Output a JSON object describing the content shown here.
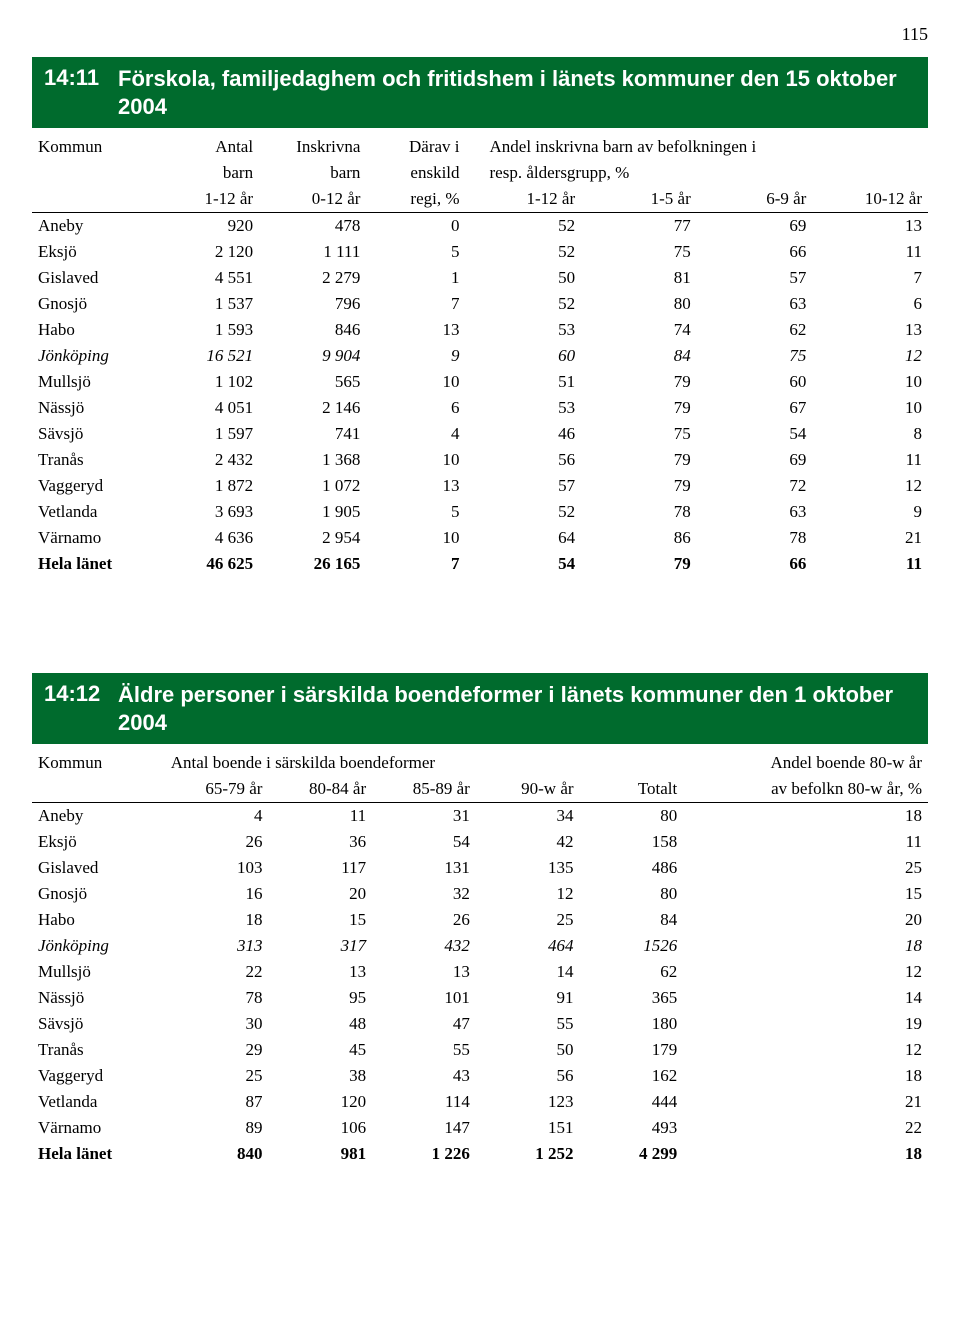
{
  "page_number": "115",
  "colors": {
    "banner_bg": "#006b2d",
    "banner_text": "#ffffff"
  },
  "section1": {
    "code": "14:11",
    "title": "Förskola, familjedaghem och fritidshem i länets kommuner den 15 oktober 2004",
    "header": {
      "col0": "Kommun",
      "col1_a": "Antal",
      "col1_b": "barn",
      "col1_c": "1-12 år",
      "col2_a": "Inskrivna",
      "col2_b": "barn",
      "col2_c": "0-12 år",
      "col3_a": "Därav i",
      "col3_b": "enskild",
      "col3_c": "regi, %",
      "span_a": "Andel inskrivna barn av befolkningen i",
      "span_b": "resp. åldersgrupp, %",
      "col4_c": "1-12 år",
      "col5_c": "1-5 år",
      "col6_c": "6-9 år",
      "col7_c": "10-12 år"
    },
    "rows": [
      {
        "n": "Aneby",
        "v": [
          "920",
          "478",
          "0",
          "52",
          "77",
          "69",
          "13"
        ]
      },
      {
        "n": "Eksjö",
        "v": [
          "2 120",
          "1 111",
          "5",
          "52",
          "75",
          "66",
          "11"
        ]
      },
      {
        "n": "Gislaved",
        "v": [
          "4 551",
          "2 279",
          "1",
          "50",
          "81",
          "57",
          "7"
        ]
      },
      {
        "n": "Gnosjö",
        "v": [
          "1 537",
          "796",
          "7",
          "52",
          "80",
          "63",
          "6"
        ]
      },
      {
        "n": "Habo",
        "v": [
          "1 593",
          "846",
          "13",
          "53",
          "74",
          "62",
          "13"
        ]
      },
      {
        "n": "Jönköping",
        "v": [
          "16 521",
          "9 904",
          "9",
          "60",
          "84",
          "75",
          "12"
        ],
        "italic": true
      },
      {
        "n": "Mullsjö",
        "v": [
          "1 102",
          "565",
          "10",
          "51",
          "79",
          "60",
          "10"
        ]
      },
      {
        "n": "Nässjö",
        "v": [
          "4 051",
          "2 146",
          "6",
          "53",
          "79",
          "67",
          "10"
        ]
      },
      {
        "n": "Sävsjö",
        "v": [
          "1 597",
          "741",
          "4",
          "46",
          "75",
          "54",
          "8"
        ]
      },
      {
        "n": "Tranås",
        "v": [
          "2 432",
          "1 368",
          "10",
          "56",
          "79",
          "69",
          "11"
        ]
      },
      {
        "n": "Vaggeryd",
        "v": [
          "1 872",
          "1 072",
          "13",
          "57",
          "79",
          "72",
          "12"
        ]
      },
      {
        "n": "Vetlanda",
        "v": [
          "3 693",
          "1 905",
          "5",
          "52",
          "78",
          "63",
          "9"
        ]
      },
      {
        "n": "Värnamo",
        "v": [
          "4 636",
          "2 954",
          "10",
          "64",
          "86",
          "78",
          "21"
        ]
      },
      {
        "n": "Hela länet",
        "v": [
          "46 625",
          "26 165",
          "7",
          "54",
          "79",
          "66",
          "11"
        ],
        "bold": true
      }
    ]
  },
  "section2": {
    "code": "14:12",
    "title": "Äldre personer i särskilda boendeformer i länets kommuner den 1 oktober 2004",
    "header": {
      "col0": "Kommun",
      "span1": "Antal boende i särskilda boendeformer",
      "right1": "Andel boende 80-w år",
      "c1": "65-79 år",
      "c2": "80-84 år",
      "c3": "85-89 år",
      "c4": "90-w år",
      "c5": "Totalt",
      "right2": "av befolkn 80-w år, %"
    },
    "rows": [
      {
        "n": "Aneby",
        "v": [
          "4",
          "11",
          "31",
          "34",
          "80",
          "18"
        ]
      },
      {
        "n": "Eksjö",
        "v": [
          "26",
          "36",
          "54",
          "42",
          "158",
          "11"
        ]
      },
      {
        "n": "Gislaved",
        "v": [
          "103",
          "117",
          "131",
          "135",
          "486",
          "25"
        ]
      },
      {
        "n": "Gnosjö",
        "v": [
          "16",
          "20",
          "32",
          "12",
          "80",
          "15"
        ]
      },
      {
        "n": "Habo",
        "v": [
          "18",
          "15",
          "26",
          "25",
          "84",
          "20"
        ]
      },
      {
        "n": "Jönköping",
        "v": [
          "313",
          "317",
          "432",
          "464",
          "1526",
          "18"
        ],
        "italic": true
      },
      {
        "n": "Mullsjö",
        "v": [
          "22",
          "13",
          "13",
          "14",
          "62",
          "12"
        ]
      },
      {
        "n": "Nässjö",
        "v": [
          "78",
          "95",
          "101",
          "91",
          "365",
          "14"
        ]
      },
      {
        "n": "Sävsjö",
        "v": [
          "30",
          "48",
          "47",
          "55",
          "180",
          "19"
        ]
      },
      {
        "n": "Tranås",
        "v": [
          "29",
          "45",
          "55",
          "50",
          "179",
          "12"
        ]
      },
      {
        "n": "Vaggeryd",
        "v": [
          "25",
          "38",
          "43",
          "56",
          "162",
          "18"
        ]
      },
      {
        "n": "Vetlanda",
        "v": [
          "87",
          "120",
          "114",
          "123",
          "444",
          "21"
        ]
      },
      {
        "n": "Värnamo",
        "v": [
          "89",
          "106",
          "147",
          "151",
          "493",
          "22"
        ]
      },
      {
        "n": "Hela länet",
        "v": [
          "840",
          "981",
          "1 226",
          "1 252",
          "4 299",
          "18"
        ],
        "bold": true
      }
    ]
  }
}
